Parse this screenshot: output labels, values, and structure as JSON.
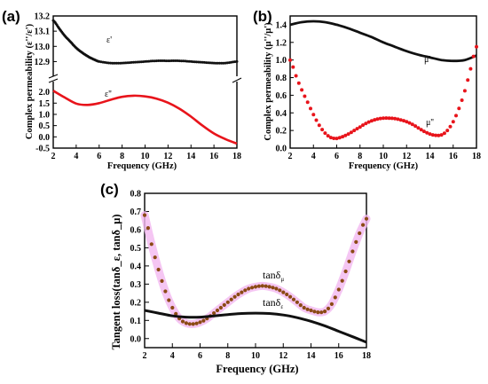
{
  "chart_data": [
    {
      "panel": "(a)",
      "type": "line",
      "xlabel": "Frequency (GHz)",
      "ylabel": "Complex permeability (ε''/ε')",
      "xlim": [
        2,
        18
      ],
      "x_ticks": [
        "2",
        "4",
        "6",
        "8",
        "10",
        "12",
        "14",
        "16",
        "18"
      ],
      "broken_axis": true,
      "upper_ylim": [
        12.85,
        13.2
      ],
      "upper_y_ticks": [
        "13.2",
        "13.1",
        "13.0",
        "12.9"
      ],
      "lower_ylim": [
        -0.5,
        2.3
      ],
      "lower_y_ticks": [
        "2.0",
        "1.5",
        "1.0",
        "0.5",
        "0.0",
        "-0.5"
      ],
      "series": [
        {
          "name": "ε'",
          "color": "#111111",
          "style": "dotted-markers",
          "axis": "upper",
          "x": [
            2,
            2.5,
            3,
            3.5,
            4,
            4.5,
            5,
            5.5,
            6,
            7,
            8,
            9,
            10,
            11,
            12,
            13,
            14,
            15,
            16,
            17,
            18
          ],
          "y": [
            13.17,
            13.12,
            13.07,
            13.03,
            12.99,
            12.96,
            12.935,
            12.915,
            12.9,
            12.89,
            12.89,
            12.895,
            12.9,
            12.905,
            12.905,
            12.905,
            12.9,
            12.895,
            12.89,
            12.89,
            12.9
          ]
        },
        {
          "name": "ε''",
          "color": "#e8141b",
          "style": "line",
          "axis": "lower",
          "x": [
            2,
            3,
            4,
            5,
            6,
            7,
            8,
            9,
            10,
            11,
            12,
            13,
            14,
            15,
            16,
            17,
            18
          ],
          "y": [
            2.05,
            1.75,
            1.48,
            1.42,
            1.5,
            1.65,
            1.78,
            1.83,
            1.8,
            1.7,
            1.52,
            1.25,
            0.9,
            0.5,
            0.15,
            -0.1,
            -0.3
          ]
        }
      ]
    },
    {
      "panel": "(b)",
      "type": "line",
      "xlabel": "Frequency (GHz)",
      "ylabel": "Complex permeability (μ''/μ')",
      "xlim": [
        2,
        18
      ],
      "x_ticks": [
        "2",
        "4",
        "6",
        "8",
        "10",
        "12",
        "14",
        "16",
        "18"
      ],
      "ylim": [
        0.0,
        1.5
      ],
      "y_ticks": [
        "0.0",
        "0.2",
        "0.4",
        "0.6",
        "0.8",
        "1.0",
        "1.2",
        "1.4"
      ],
      "series": [
        {
          "name": "μ'",
          "color": "#111111",
          "style": "line",
          "x": [
            2,
            3,
            4,
            5,
            6,
            7,
            8,
            9,
            10,
            11,
            12,
            13,
            14,
            15,
            16,
            17,
            18
          ],
          "y": [
            1.4,
            1.43,
            1.44,
            1.43,
            1.4,
            1.36,
            1.31,
            1.26,
            1.2,
            1.15,
            1.1,
            1.06,
            1.03,
            1.0,
            0.99,
            1.0,
            1.05
          ]
        },
        {
          "name": "μ''",
          "color": "#e8141b",
          "style": "dots",
          "x": [
            2,
            2.5,
            3,
            3.5,
            4,
            4.5,
            5,
            5.5,
            6,
            6.5,
            7,
            7.5,
            8,
            8.5,
            9,
            9.5,
            10,
            10.5,
            11,
            11.5,
            12,
            12.5,
            13,
            13.5,
            14,
            14.5,
            15,
            15.5,
            16,
            16.5,
            17,
            17.5,
            18
          ],
          "y": [
            1.0,
            0.82,
            0.66,
            0.52,
            0.38,
            0.26,
            0.17,
            0.12,
            0.11,
            0.13,
            0.16,
            0.2,
            0.24,
            0.28,
            0.31,
            0.33,
            0.34,
            0.34,
            0.335,
            0.32,
            0.3,
            0.27,
            0.23,
            0.19,
            0.16,
            0.145,
            0.15,
            0.2,
            0.3,
            0.45,
            0.65,
            0.9,
            1.15
          ]
        }
      ],
      "labels": [
        "μ'",
        "μ''"
      ]
    },
    {
      "panel": "(c)",
      "type": "line",
      "xlabel": "Frequency (GHz)",
      "ylabel": "Tangent loss(tanδ_ε, tanδ_μ)",
      "xlim": [
        2,
        18
      ],
      "x_ticks": [
        "2",
        "4",
        "6",
        "8",
        "10",
        "12",
        "14",
        "16",
        "18"
      ],
      "ylim": [
        -0.05,
        0.8
      ],
      "y_ticks": [
        "0.0",
        "0.1",
        "0.2",
        "0.3",
        "0.4",
        "0.5",
        "0.6",
        "0.7",
        "0.8"
      ],
      "series": [
        {
          "name": "tanδ_μ",
          "color": "#8b4a14",
          "glow": "#f2b8f0",
          "style": "dots",
          "x": [
            2,
            2.5,
            3,
            3.5,
            4,
            4.5,
            5,
            5.5,
            6,
            6.5,
            7,
            7.5,
            8,
            8.5,
            9,
            9.5,
            10,
            10.5,
            11,
            11.5,
            12,
            12.5,
            13,
            13.5,
            14,
            14.5,
            15,
            15.5,
            16,
            16.5,
            17,
            17.5,
            18
          ],
          "y": [
            0.68,
            0.52,
            0.38,
            0.26,
            0.17,
            0.11,
            0.085,
            0.08,
            0.09,
            0.11,
            0.14,
            0.17,
            0.2,
            0.23,
            0.255,
            0.275,
            0.285,
            0.29,
            0.285,
            0.275,
            0.255,
            0.23,
            0.2,
            0.17,
            0.155,
            0.145,
            0.15,
            0.19,
            0.27,
            0.37,
            0.48,
            0.58,
            0.66
          ]
        },
        {
          "name": "tanδ_ε",
          "color": "#111111",
          "style": "line",
          "x": [
            2,
            3,
            4,
            5,
            6,
            7,
            8,
            9,
            10,
            11,
            12,
            13,
            14,
            15,
            16,
            17,
            18
          ],
          "y": [
            0.155,
            0.14,
            0.125,
            0.118,
            0.118,
            0.125,
            0.132,
            0.138,
            0.14,
            0.138,
            0.13,
            0.115,
            0.095,
            0.07,
            0.04,
            0.01,
            -0.02
          ]
        }
      ],
      "labels": [
        "tanδ",
        "tanδ"
      ],
      "label_subscripts": [
        "μ",
        "ε"
      ]
    }
  ]
}
